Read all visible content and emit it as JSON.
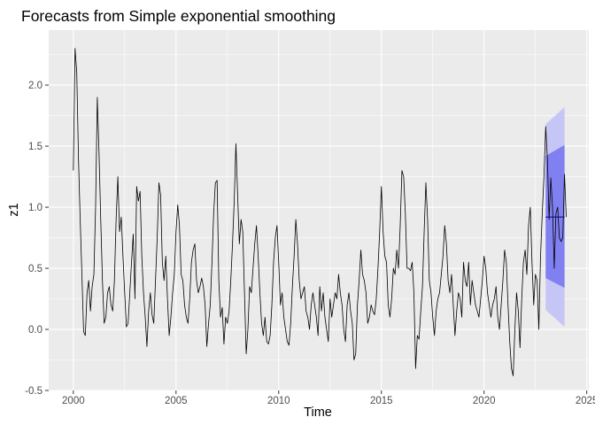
{
  "colors": {
    "panel_bg": "#EBEBEB",
    "grid_major": "#FFFFFF",
    "series": "#000000",
    "pi80": "#8080F0",
    "pi95": "#C6C6F6",
    "forecast": "#000080"
  },
  "chart_data": {
    "type": "line",
    "title": "Forecasts from Simple exponential smoothing",
    "xlabel": "Time",
    "ylabel": "z1",
    "xlim": [
      1998.8,
      2025.1
    ],
    "ylim": [
      -0.5,
      2.45
    ],
    "x_ticks": [
      2000,
      2005,
      2010,
      2015,
      2020,
      2025
    ],
    "x_tick_labels": [
      "2000",
      "2005",
      "2010",
      "2015",
      "2020",
      "2025"
    ],
    "y_ticks": [
      -0.5,
      0.0,
      0.5,
      1.0,
      1.5,
      2.0
    ],
    "y_tick_labels": [
      "-0.5",
      "0.0",
      "0.5",
      "1.0",
      "1.5",
      "2.0"
    ],
    "grid": true,
    "series": [
      {
        "role": "observed",
        "start": 2000.0,
        "frequency": 12,
        "values": [
          1.3,
          2.3,
          2.1,
          1.4,
          0.9,
          0.45,
          -0.02,
          -0.05,
          0.3,
          0.4,
          0.15,
          0.35,
          0.45,
          1.0,
          1.9,
          1.45,
          0.9,
          0.4,
          0.05,
          0.1,
          0.3,
          0.35,
          0.2,
          0.15,
          0.4,
          0.9,
          1.25,
          0.8,
          0.92,
          0.6,
          0.3,
          0.02,
          0.05,
          0.3,
          0.55,
          0.78,
          0.25,
          1.17,
          1.05,
          1.13,
          0.6,
          0.3,
          0.1,
          -0.14,
          0.15,
          0.3,
          0.12,
          0.05,
          0.4,
          0.75,
          1.2,
          1.1,
          0.55,
          0.4,
          0.6,
          0.25,
          -0.05,
          0.1,
          0.3,
          0.45,
          0.8,
          1.02,
          0.85,
          0.45,
          0.4,
          0.2,
          0.1,
          0.05,
          0.25,
          0.55,
          0.65,
          0.7,
          0.4,
          0.3,
          0.35,
          0.42,
          0.35,
          0.2,
          -0.14,
          0.05,
          0.2,
          0.55,
          0.95,
          1.2,
          1.22,
          0.4,
          0.1,
          0.18,
          -0.12,
          0.1,
          0.05,
          0.15,
          0.4,
          0.7,
          1.05,
          1.52,
          1.1,
          0.7,
          0.9,
          0.8,
          0.3,
          -0.2,
          0.0,
          0.35,
          0.3,
          0.5,
          0.7,
          0.85,
          0.6,
          0.3,
          0.05,
          -0.05,
          0.1,
          -0.1,
          -0.12,
          -0.05,
          0.2,
          0.55,
          0.75,
          0.85,
          0.55,
          0.2,
          0.3,
          0.1,
          0.0,
          -0.1,
          -0.13,
          0.05,
          0.35,
          0.6,
          0.9,
          0.7,
          0.4,
          0.25,
          0.3,
          0.35,
          0.15,
          0.1,
          0.0,
          0.2,
          0.3,
          0.2,
          0.1,
          -0.05,
          0.35,
          0.15,
          0.3,
          0.1,
          0.0,
          -0.1,
          0.25,
          0.1,
          0.2,
          0.3,
          0.25,
          0.45,
          0.3,
          0.2,
          0.0,
          -0.1,
          0.2,
          0.3,
          0.15,
          0.05,
          -0.25,
          -0.2,
          0.2,
          0.4,
          0.65,
          0.45,
          0.4,
          0.3,
          0.05,
          0.1,
          0.2,
          0.15,
          0.12,
          0.25,
          0.5,
          0.8,
          1.17,
          0.8,
          0.6,
          0.55,
          0.2,
          0.1,
          0.25,
          0.5,
          0.45,
          0.65,
          0.5,
          0.85,
          1.3,
          1.25,
          0.95,
          0.5,
          0.5,
          0.48,
          0.55,
          0.3,
          -0.32,
          -0.05,
          -0.08,
          0.15,
          0.35,
          0.8,
          1.2,
          0.9,
          0.4,
          0.3,
          0.1,
          -0.05,
          0.15,
          0.25,
          0.3,
          0.45,
          0.6,
          0.85,
          0.7,
          0.4,
          0.3,
          0.45,
          0.2,
          -0.05,
          0.15,
          0.3,
          0.25,
          0.1,
          0.55,
          0.4,
          0.35,
          0.55,
          0.2,
          0.4,
          0.3,
          0.2,
          0.15,
          0.1,
          0.25,
          0.4,
          0.6,
          0.5,
          0.3,
          0.2,
          0.1,
          0.2,
          0.25,
          0.35,
          0.1,
          0.0,
          0.2,
          0.4,
          0.65,
          0.55,
          0.2,
          -0.1,
          -0.32,
          -0.38,
          0.0,
          0.3,
          0.15,
          -0.15,
          0.25,
          0.55,
          0.65,
          0.45,
          0.85,
          1.0,
          0.55,
          0.2,
          0.45,
          0.4,
          0.0,
          0.6,
          0.95,
          1.25,
          1.66,
          1.4,
          0.9,
          1.24,
          1.0,
          0.5,
          0.95,
          1.0,
          0.75,
          0.72,
          0.75,
          1.27,
          0.92
        ]
      }
    ],
    "forecast": {
      "start": 2023.0,
      "end": 2023.92,
      "mean": 0.92,
      "lo80": [
        0.42,
        0.34
      ],
      "hi80": [
        1.42,
        1.51
      ],
      "lo95": [
        0.16,
        0.02
      ],
      "hi95": [
        1.68,
        1.82
      ]
    }
  }
}
